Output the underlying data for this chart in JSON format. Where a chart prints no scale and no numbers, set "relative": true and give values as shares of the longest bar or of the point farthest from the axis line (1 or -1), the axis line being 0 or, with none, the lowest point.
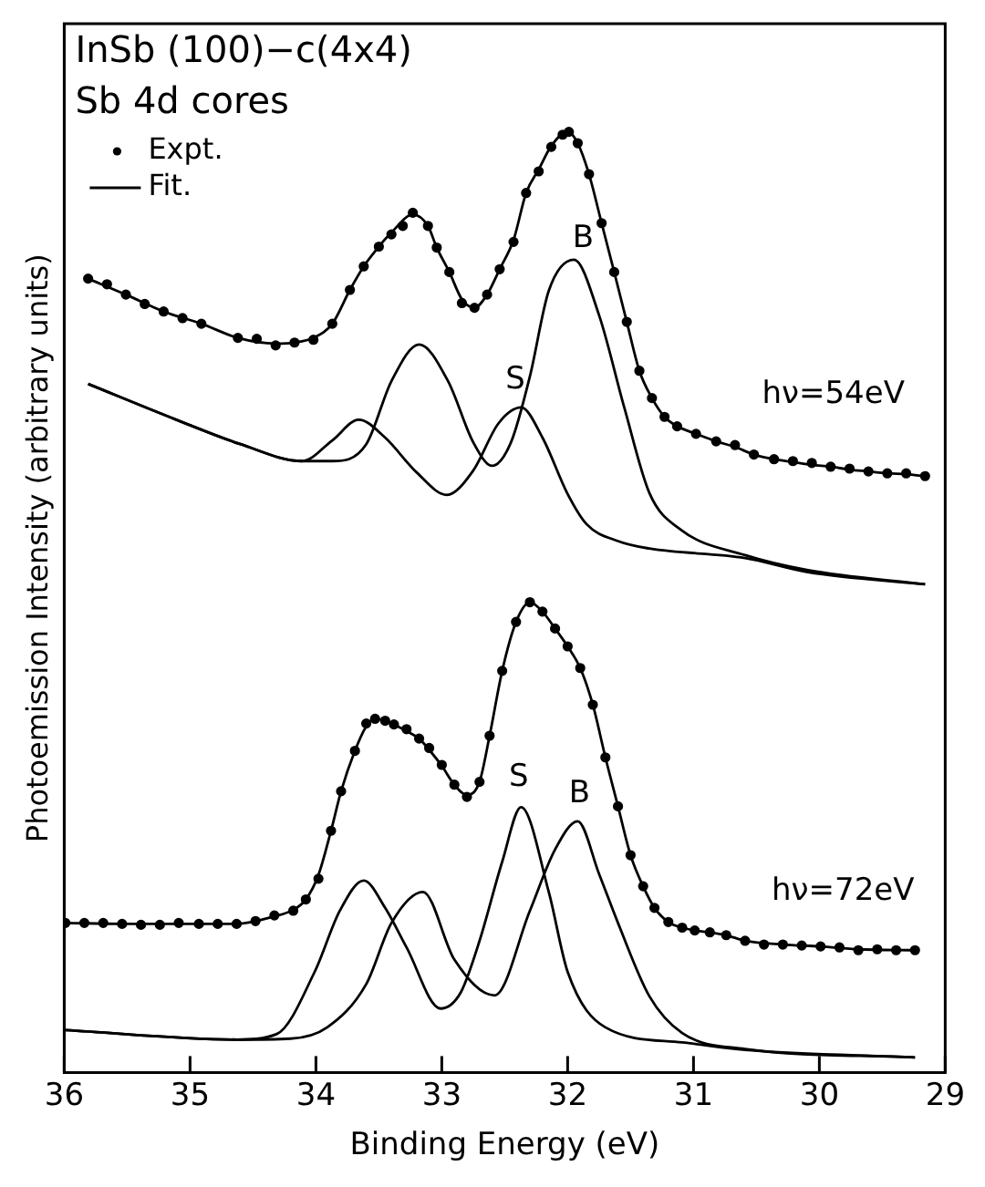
{
  "chart_data": {
    "type": "line",
    "title": "InSb (100)−c(4x4)",
    "subtitle": "Sb 4d cores",
    "xlabel": "Binding Energy (eV)",
    "ylabel": "Photoemission Intensity (arbitrary units)",
    "relative": true,
    "xlim": [
      36,
      29
    ],
    "xticks": [
      36,
      35,
      34,
      33,
      32,
      31,
      30,
      29
    ],
    "grid": false,
    "legend": "top left",
    "line_style": "solid",
    "annotations": [
      "S",
      "B",
      "hν=54eV",
      "S",
      "B",
      "hν=72eV"
    ],
    "series": [
      {
        "name": "Expt.",
        "type": "scatter",
        "marker": "circle",
        "color": "#000000",
        "x": [
          35.81,
          35.66,
          35.51,
          35.36,
          35.21,
          35.06,
          34.91,
          34.62,
          34.47,
          34.32,
          34.17,
          34.02,
          33.87,
          33.73,
          33.62,
          33.5,
          33.4,
          33.31,
          33.23,
          33.11,
          33.04,
          32.94,
          32.84,
          32.74,
          32.64,
          32.54,
          32.43,
          32.33,
          32.23,
          32.13,
          32.04,
          31.99,
          31.92,
          31.83,
          31.73,
          31.63,
          31.53,
          31.43,
          31.33,
          31.23,
          31.13,
          30.98,
          30.82,
          30.67,
          30.52,
          30.36,
          30.21,
          30.06,
          29.91,
          29.76,
          29.61,
          29.46,
          29.31,
          29.16
        ],
        "values": [
          0.844,
          0.838,
          0.827,
          0.817,
          0.809,
          0.802,
          0.796,
          0.781,
          0.78,
          0.773,
          0.776,
          0.779,
          0.796,
          0.832,
          0.857,
          0.878,
          0.891,
          0.9,
          0.914,
          0.9,
          0.877,
          0.851,
          0.818,
          0.813,
          0.827,
          0.854,
          0.883,
          0.935,
          0.958,
          0.984,
          0.997,
          1.0,
          0.988,
          0.955,
          0.903,
          0.851,
          0.798,
          0.746,
          0.717,
          0.697,
          0.687,
          0.679,
          0.671,
          0.667,
          0.657,
          0.652,
          0.65,
          0.648,
          0.644,
          0.642,
          0.639,
          0.637,
          0.637,
          0.634
        ]
      },
      {
        "name": "Fit.",
        "color": "#000000",
        "x": [
          35.81,
          35.51,
          35.21,
          34.91,
          34.62,
          34.32,
          34.17,
          34.02,
          33.87,
          33.73,
          33.62,
          33.5,
          33.4,
          33.23,
          33.11,
          33.04,
          32.94,
          32.84,
          32.74,
          32.64,
          32.54,
          32.43,
          32.33,
          32.23,
          32.13,
          32.0,
          31.92,
          31.83,
          31.73,
          31.63,
          31.53,
          31.43,
          31.33,
          31.23,
          31.13,
          30.98,
          30.82,
          30.67,
          30.52,
          30.36,
          30.21,
          30.06,
          29.91,
          29.76,
          29.61,
          29.46,
          29.31,
          29.16
        ],
        "values": [
          0.844,
          0.827,
          0.809,
          0.796,
          0.781,
          0.775,
          0.776,
          0.781,
          0.796,
          0.832,
          0.857,
          0.878,
          0.893,
          0.912,
          0.9,
          0.877,
          0.851,
          0.822,
          0.813,
          0.827,
          0.854,
          0.885,
          0.935,
          0.96,
          0.985,
          1.0,
          0.988,
          0.955,
          0.903,
          0.851,
          0.798,
          0.746,
          0.717,
          0.697,
          0.687,
          0.679,
          0.671,
          0.665,
          0.657,
          0.652,
          0.649,
          0.646,
          0.644,
          0.641,
          0.639,
          0.637,
          0.636,
          0.634
        ]
      },
      {
        "type": "line",
        "color": "#000000",
        "x": [
          35.81,
          35.11,
          34.6,
          34.11,
          33.87,
          33.66,
          33.45,
          33.2,
          32.96,
          32.75,
          32.55,
          32.37,
          32.2,
          32.0,
          31.85,
          31.6,
          31.35,
          30.59,
          30.09,
          29.16
        ],
        "values": [
          0.732,
          0.694,
          0.668,
          0.65,
          0.672,
          0.694,
          0.675,
          0.638,
          0.614,
          0.64,
          0.69,
          0.707,
          0.675,
          0.615,
          0.583,
          0.565,
          0.557,
          0.547,
          0.532,
          0.519
        ]
      },
      {
        "type": "line",
        "color": "#000000",
        "x": [
          35.81,
          35.11,
          34.6,
          34.11,
          33.87,
          33.6,
          33.4,
          33.18,
          32.95,
          32.75,
          32.6,
          32.45,
          32.3,
          32.15,
          31.95,
          31.75,
          31.55,
          31.35,
          31.1,
          30.59,
          30.09,
          29.16
        ],
        "values": [
          0.732,
          0.694,
          0.668,
          0.65,
          0.65,
          0.668,
          0.735,
          0.774,
          0.735,
          0.67,
          0.645,
          0.67,
          0.74,
          0.831,
          0.864,
          0.805,
          0.707,
          0.616,
          0.577,
          0.55,
          0.534,
          0.519
        ]
      },
      {
        "type": "scatter",
        "marker": "circle",
        "color": "#000000",
        "x": [
          35.99,
          35.84,
          35.69,
          35.54,
          35.39,
          35.24,
          35.09,
          34.93,
          34.78,
          34.63,
          34.48,
          34.33,
          34.18,
          34.08,
          33.98,
          33.88,
          33.8,
          33.69,
          33.6,
          33.53,
          33.45,
          33.38,
          33.28,
          33.18,
          33.1,
          33.0,
          32.9,
          32.8,
          32.7,
          32.62,
          32.52,
          32.41,
          32.3,
          32.2,
          32.1,
          32.0,
          31.9,
          31.8,
          31.7,
          31.6,
          31.5,
          31.4,
          31.31,
          31.2,
          31.09,
          30.99,
          30.87,
          30.74,
          30.59,
          30.44,
          30.29,
          30.14,
          29.99,
          29.84,
          29.69,
          29.54,
          29.39,
          29.24
        ],
        "values": [
          0.159,
          0.159,
          0.159,
          0.158,
          0.157,
          0.157,
          0.159,
          0.158,
          0.158,
          0.158,
          0.161,
          0.167,
          0.172,
          0.184,
          0.206,
          0.257,
          0.299,
          0.342,
          0.371,
          0.376,
          0.374,
          0.37,
          0.365,
          0.355,
          0.345,
          0.327,
          0.306,
          0.293,
          0.309,
          0.358,
          0.427,
          0.479,
          0.5,
          0.49,
          0.472,
          0.453,
          0.43,
          0.391,
          0.335,
          0.283,
          0.231,
          0.198,
          0.175,
          0.16,
          0.154,
          0.151,
          0.149,
          0.146,
          0.14,
          0.136,
          0.136,
          0.135,
          0.134,
          0.133,
          0.13,
          0.131,
          0.13,
          0.13
        ]
      },
      {
        "type": "line",
        "color": "#000000",
        "x": [
          35.99,
          35.54,
          35.09,
          34.63,
          34.33,
          34.18,
          34.08,
          33.98,
          33.88,
          33.8,
          33.69,
          33.6,
          33.53,
          33.45,
          33.38,
          33.28,
          33.18,
          33.1,
          33.0,
          32.9,
          32.8,
          32.7,
          32.62,
          32.52,
          32.41,
          32.3,
          32.2,
          32.1,
          32.0,
          31.9,
          31.8,
          31.7,
          31.6,
          31.5,
          31.4,
          31.31,
          31.2,
          31.09,
          30.99,
          30.87,
          30.74,
          30.59,
          30.29,
          29.99,
          29.69,
          29.24
        ],
        "values": [
          0.159,
          0.158,
          0.158,
          0.158,
          0.166,
          0.173,
          0.184,
          0.21,
          0.257,
          0.299,
          0.342,
          0.368,
          0.376,
          0.374,
          0.37,
          0.363,
          0.355,
          0.343,
          0.326,
          0.306,
          0.295,
          0.309,
          0.358,
          0.427,
          0.479,
          0.5,
          0.49,
          0.472,
          0.453,
          0.43,
          0.391,
          0.335,
          0.283,
          0.231,
          0.198,
          0.175,
          0.16,
          0.154,
          0.151,
          0.149,
          0.146,
          0.14,
          0.136,
          0.134,
          0.131,
          0.13
        ]
      },
      {
        "type": "line",
        "color": "#000000",
        "x": [
          35.99,
          34.63,
          34.31,
          34.01,
          33.81,
          33.62,
          33.45,
          33.28,
          33.01,
          32.85,
          32.7,
          32.52,
          32.37,
          32.15,
          32.0,
          31.7,
          31.09,
          30.59,
          29.24
        ],
        "values": [
          0.045,
          0.035,
          0.041,
          0.107,
          0.172,
          0.204,
          0.175,
          0.133,
          0.068,
          0.085,
          0.14,
          0.224,
          0.282,
          0.192,
          0.107,
          0.048,
          0.032,
          0.024,
          0.016
        ]
      },
      {
        "type": "line",
        "color": "#000000",
        "x": [
          35.99,
          34.63,
          34.2,
          33.91,
          33.6,
          33.4,
          33.15,
          32.9,
          32.58,
          32.3,
          32.1,
          31.92,
          31.75,
          31.6,
          31.35,
          31.09,
          30.59,
          29.24
        ],
        "values": [
          0.045,
          0.035,
          0.036,
          0.048,
          0.094,
          0.159,
          0.192,
          0.12,
          0.082,
          0.172,
          0.237,
          0.267,
          0.211,
          0.159,
          0.081,
          0.042,
          0.025,
          0.016
        ]
      }
    ]
  }
}
